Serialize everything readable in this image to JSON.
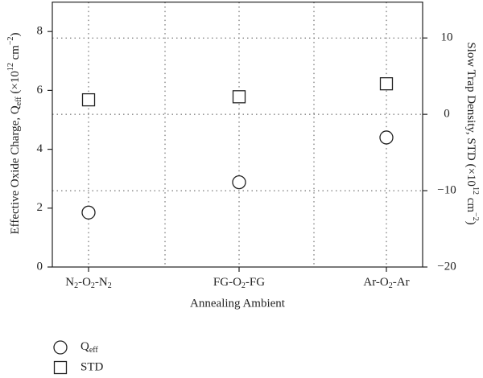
{
  "chart_data": {
    "type": "scatter",
    "xlabel": "Annealing Ambient",
    "ylabel": [
      "Effective Oxide Charge, Q",
      {
        "sub": "eff"
      },
      " (×10",
      {
        "sup": "12"
      },
      " cm",
      {
        "sup": "−2"
      },
      ")"
    ],
    "y2label": [
      "Slow Trap Density, STD (×10",
      {
        "sup": "12"
      },
      " cm",
      {
        "sup": "−2"
      },
      ")"
    ],
    "categories": [
      [
        "N",
        {
          "sub": "2"
        },
        "-O",
        {
          "sub": "2"
        },
        "-N",
        {
          "sub": "2"
        }
      ],
      [
        "FG-O",
        {
          "sub": "2"
        },
        "-FG"
      ],
      [
        "Ar-O",
        {
          "sub": "2"
        },
        "-Ar"
      ]
    ],
    "ylim": [
      0,
      9
    ],
    "yticks": [
      0,
      2,
      4,
      6,
      8
    ],
    "y2lim": [
      -20,
      14.7
    ],
    "y2ticks": [
      {
        "value": -20,
        "label": "−20"
      },
      {
        "value": -10,
        "label": "−10"
      },
      0,
      10
    ],
    "grid": true,
    "series": [
      {
        "name": [
          "Q",
          {
            "sub": "eff"
          }
        ],
        "marker": "circle",
        "color": "#222222",
        "values": [
          1.85,
          2.88,
          4.4
        ]
      },
      {
        "name": "STD",
        "marker": "square",
        "color": "#222222",
        "axis": "y2",
        "values": [
          1.9,
          2.3,
          4.0
        ]
      }
    ]
  }
}
